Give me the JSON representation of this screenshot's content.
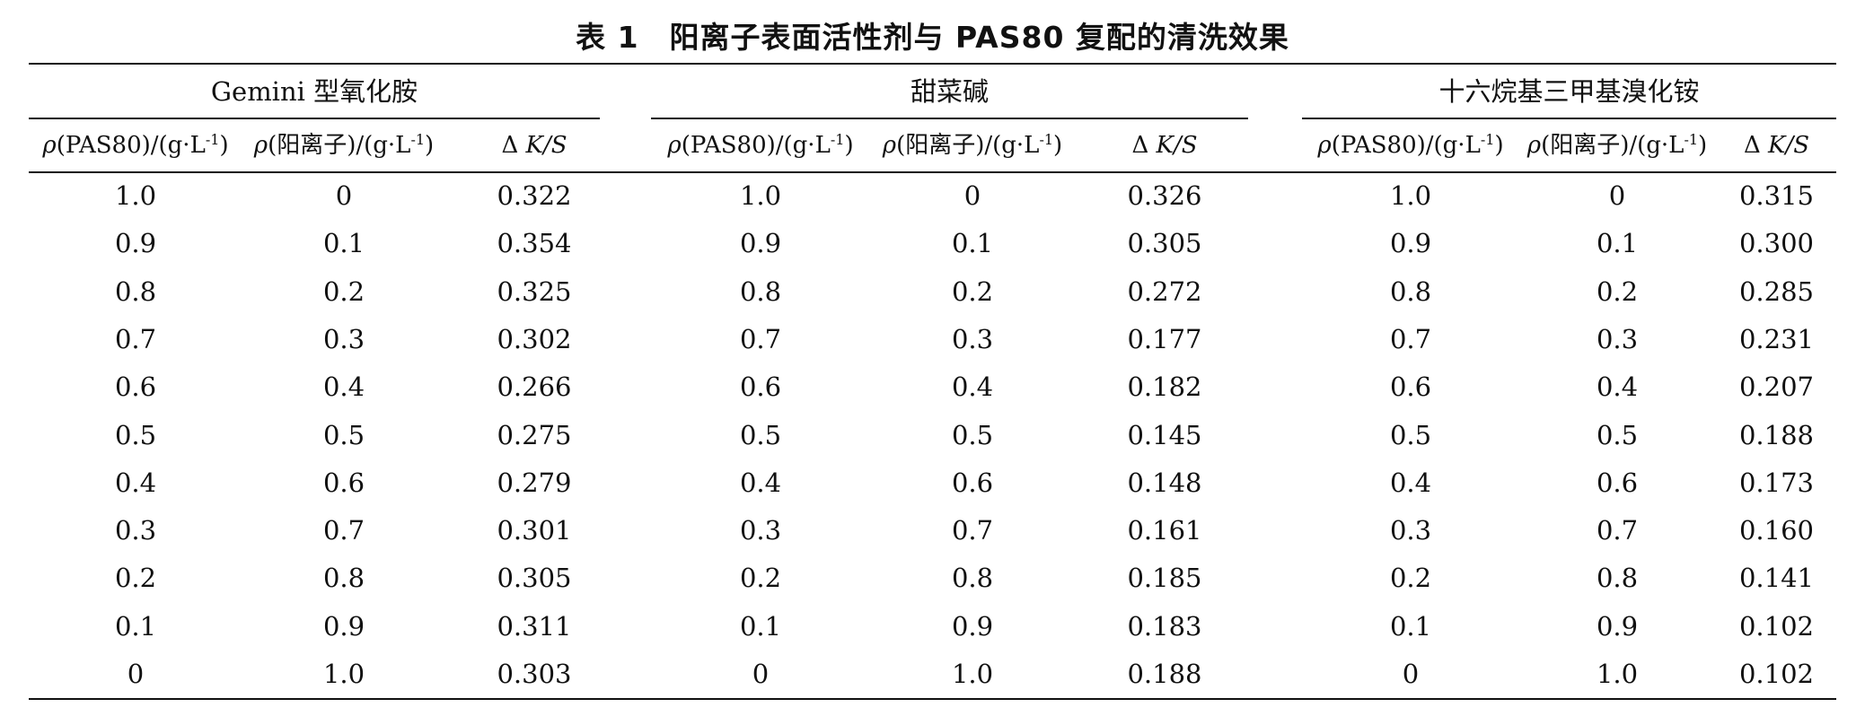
{
  "caption": {
    "label": "表 1",
    "title": "阳离子表面活性剂与 PAS80 复配的清洗效果"
  },
  "groups": [
    {
      "name": "Gemini 型氧化胺",
      "headers": {
        "c1_prefix": "(PAS80)/(g·L",
        "c1_sup": "-1",
        "c1_suffix": ")",
        "c2_prefix": "(阳离子)/(g·L",
        "c2_sup": "-1",
        "c2_suffix": ")",
        "c3_delta": "Δ ",
        "c3_ks": "K/S"
      },
      "rows": [
        [
          "1.0",
          "0",
          "0.322"
        ],
        [
          "0.9",
          "0.1",
          "0.354"
        ],
        [
          "0.8",
          "0.2",
          "0.325"
        ],
        [
          "0.7",
          "0.3",
          "0.302"
        ],
        [
          "0.6",
          "0.4",
          "0.266"
        ],
        [
          "0.5",
          "0.5",
          "0.275"
        ],
        [
          "0.4",
          "0.6",
          "0.279"
        ],
        [
          "0.3",
          "0.7",
          "0.301"
        ],
        [
          "0.2",
          "0.8",
          "0.305"
        ],
        [
          "0.1",
          "0.9",
          "0.311"
        ],
        [
          "0",
          "1.0",
          "0.303"
        ]
      ]
    },
    {
      "name": "甜菜碱",
      "headers": {
        "c1_prefix": "(PAS80)/(g·L",
        "c1_sup": "-1",
        "c1_suffix": ")",
        "c2_prefix": "(阳离子)/(g·L",
        "c2_sup": "-1",
        "c2_suffix": ")",
        "c3_delta": "Δ ",
        "c3_ks": "K/S"
      },
      "rows": [
        [
          "1.0",
          "0",
          "0.326"
        ],
        [
          "0.9",
          "0.1",
          "0.305"
        ],
        [
          "0.8",
          "0.2",
          "0.272"
        ],
        [
          "0.7",
          "0.3",
          "0.177"
        ],
        [
          "0.6",
          "0.4",
          "0.182"
        ],
        [
          "0.5",
          "0.5",
          "0.145"
        ],
        [
          "0.4",
          "0.6",
          "0.148"
        ],
        [
          "0.3",
          "0.7",
          "0.161"
        ],
        [
          "0.2",
          "0.8",
          "0.185"
        ],
        [
          "0.1",
          "0.9",
          "0.183"
        ],
        [
          "0",
          "1.0",
          "0.188"
        ]
      ]
    },
    {
      "name": "十六烷基三甲基溴化铵",
      "headers": {
        "c1_prefix": "(PAS80)/(g·L",
        "c1_sup": "-1",
        "c1_suffix": ")",
        "c2_prefix": "(阳离子)/(g·L",
        "c2_sup": "-1",
        "c2_suffix": ")",
        "c3_delta": "Δ ",
        "c3_ks": "K/S"
      },
      "rows": [
        [
          "1.0",
          "0",
          "0.315"
        ],
        [
          "0.9",
          "0.1",
          "0.300"
        ],
        [
          "0.8",
          "0.2",
          "0.285"
        ],
        [
          "0.7",
          "0.3",
          "0.231"
        ],
        [
          "0.6",
          "0.4",
          "0.207"
        ],
        [
          "0.5",
          "0.5",
          "0.188"
        ],
        [
          "0.4",
          "0.6",
          "0.173"
        ],
        [
          "0.3",
          "0.7",
          "0.160"
        ],
        [
          "0.2",
          "0.8",
          "0.141"
        ],
        [
          "0.1",
          "0.9",
          "0.102"
        ],
        [
          "0",
          "1.0",
          "0.102"
        ]
      ]
    }
  ],
  "rho_symbol": "ρ"
}
